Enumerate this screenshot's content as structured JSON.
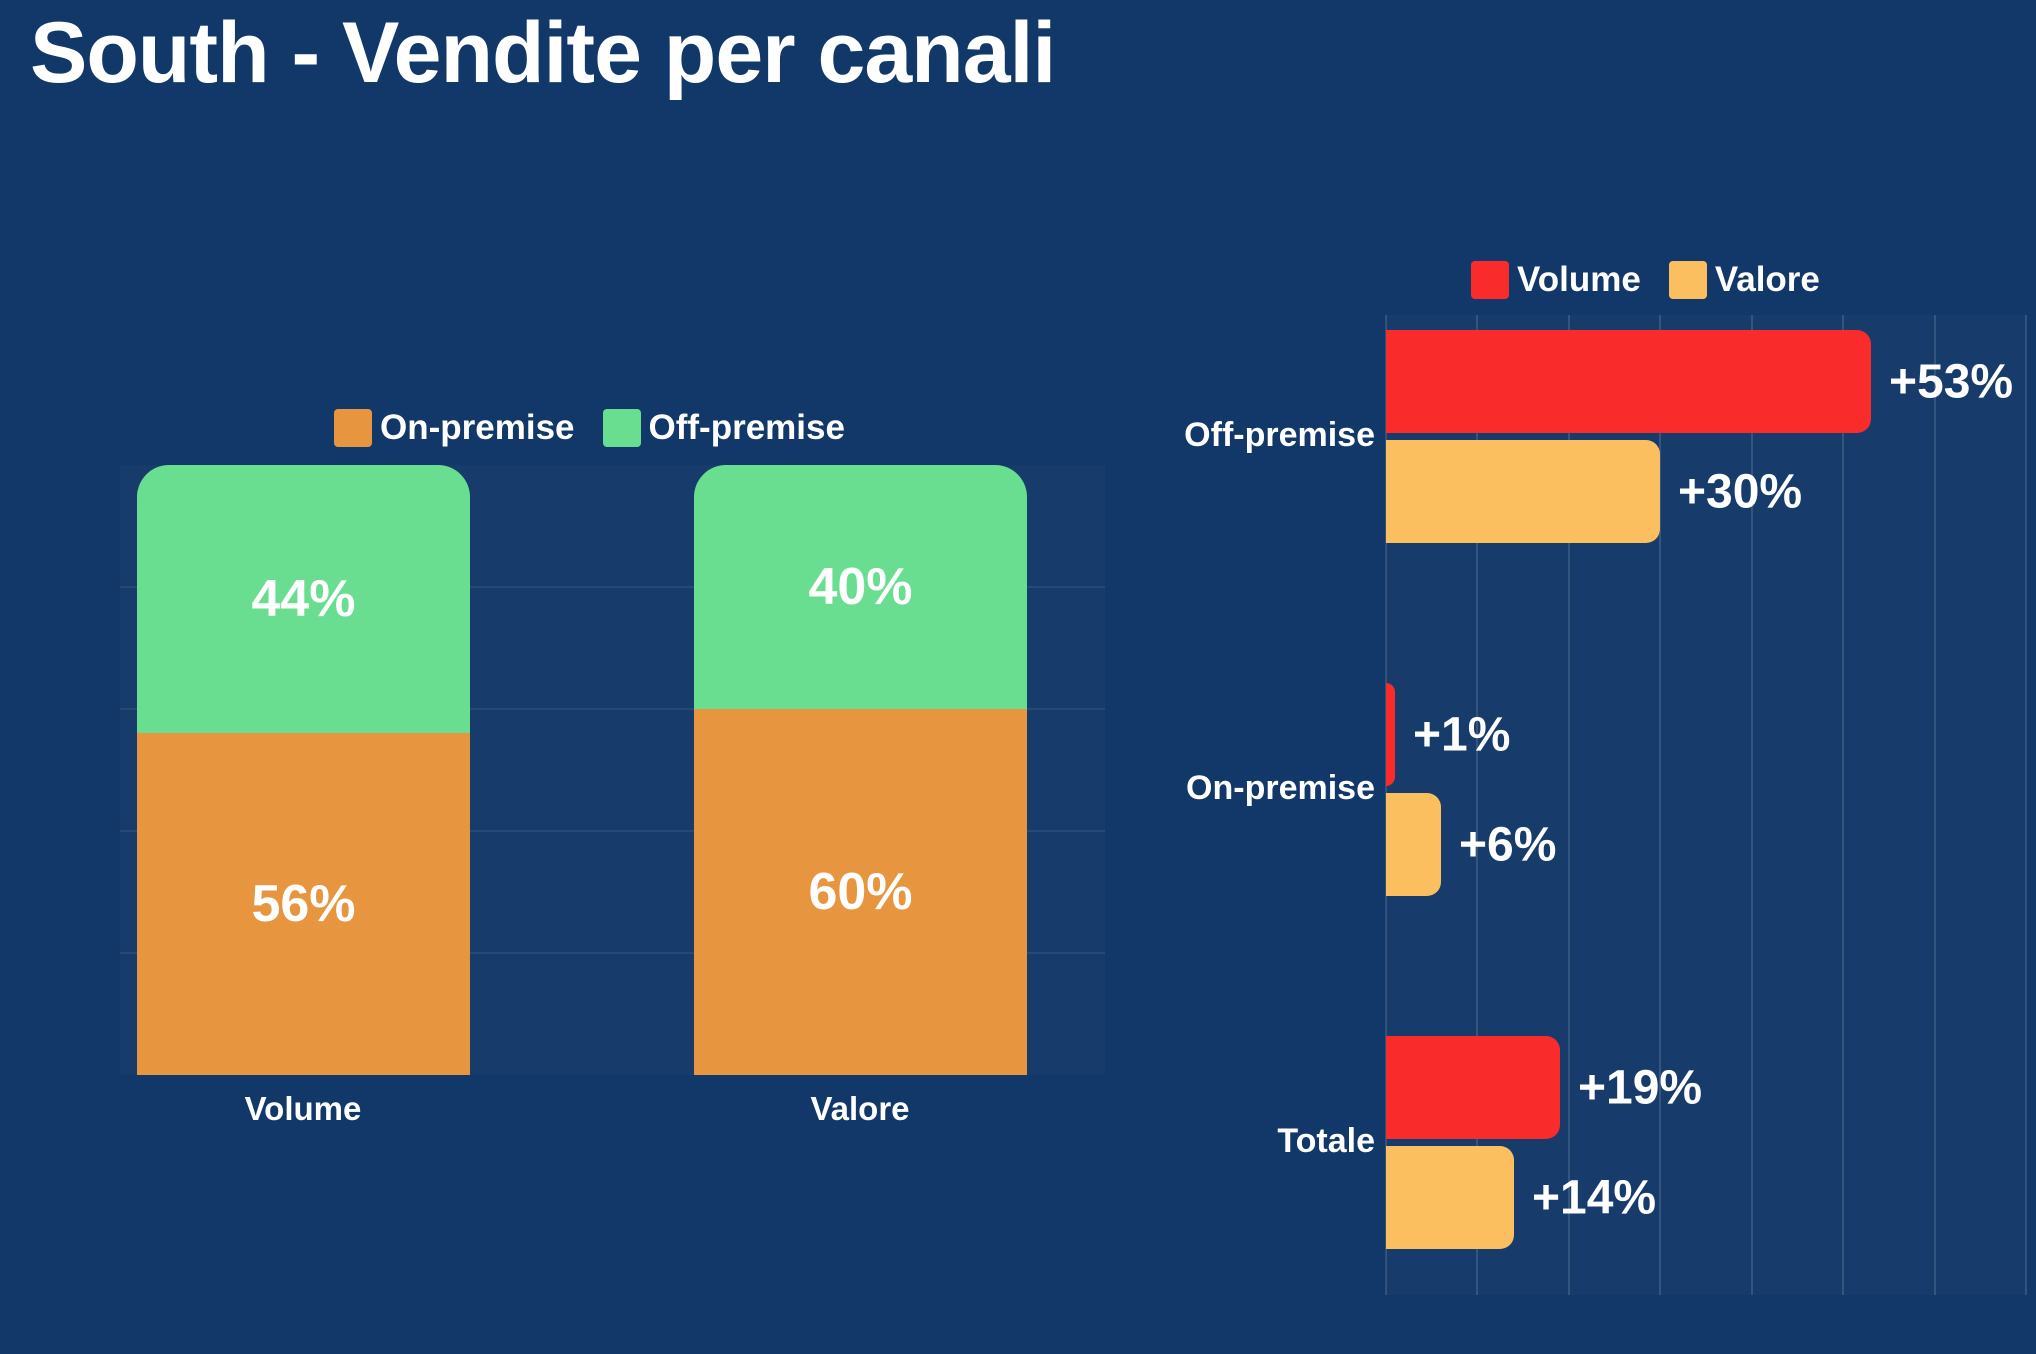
{
  "page": {
    "title": "South - Vendite per canali",
    "background": "#123869"
  },
  "colors": {
    "background": "#123869",
    "on_premise_orange": "#E7953E",
    "off_premise_green": "#69DE91",
    "volume_red": "#FA2B2B",
    "valore_amber": "#FBBF5F",
    "text": "#FFFFFF"
  },
  "chart_data": [
    {
      "type": "bar",
      "subtype": "stacked-vertical",
      "title": "",
      "categories": [
        "Volume",
        "Valore"
      ],
      "series": [
        {
          "name": "On-premise",
          "color": "#E7953E",
          "values": [
            56,
            60
          ],
          "labels": [
            "56%",
            "60%"
          ]
        },
        {
          "name": "Off-premise",
          "color": "#69DE91",
          "values": [
            44,
            40
          ],
          "labels": [
            "44%",
            "40%"
          ]
        }
      ],
      "ylim": [
        0,
        100
      ],
      "grid": "horizontal-faint",
      "legend_position": "top"
    },
    {
      "type": "bar",
      "subtype": "grouped-horizontal",
      "title": "",
      "categories": [
        "Off-premise",
        "On-premise",
        "Totale"
      ],
      "series": [
        {
          "name": "Volume",
          "color": "#FA2B2B",
          "values": [
            53,
            1,
            19
          ],
          "labels": [
            "+53%",
            "+1%",
            "+19%"
          ]
        },
        {
          "name": "Valore",
          "color": "#FBBF5F",
          "values": [
            30,
            6,
            14
          ],
          "labels": [
            "+30%",
            "+6%",
            "+14%"
          ]
        }
      ],
      "xlim": [
        0,
        70
      ],
      "grid": "vertical-faint",
      "legend_position": "top"
    }
  ]
}
